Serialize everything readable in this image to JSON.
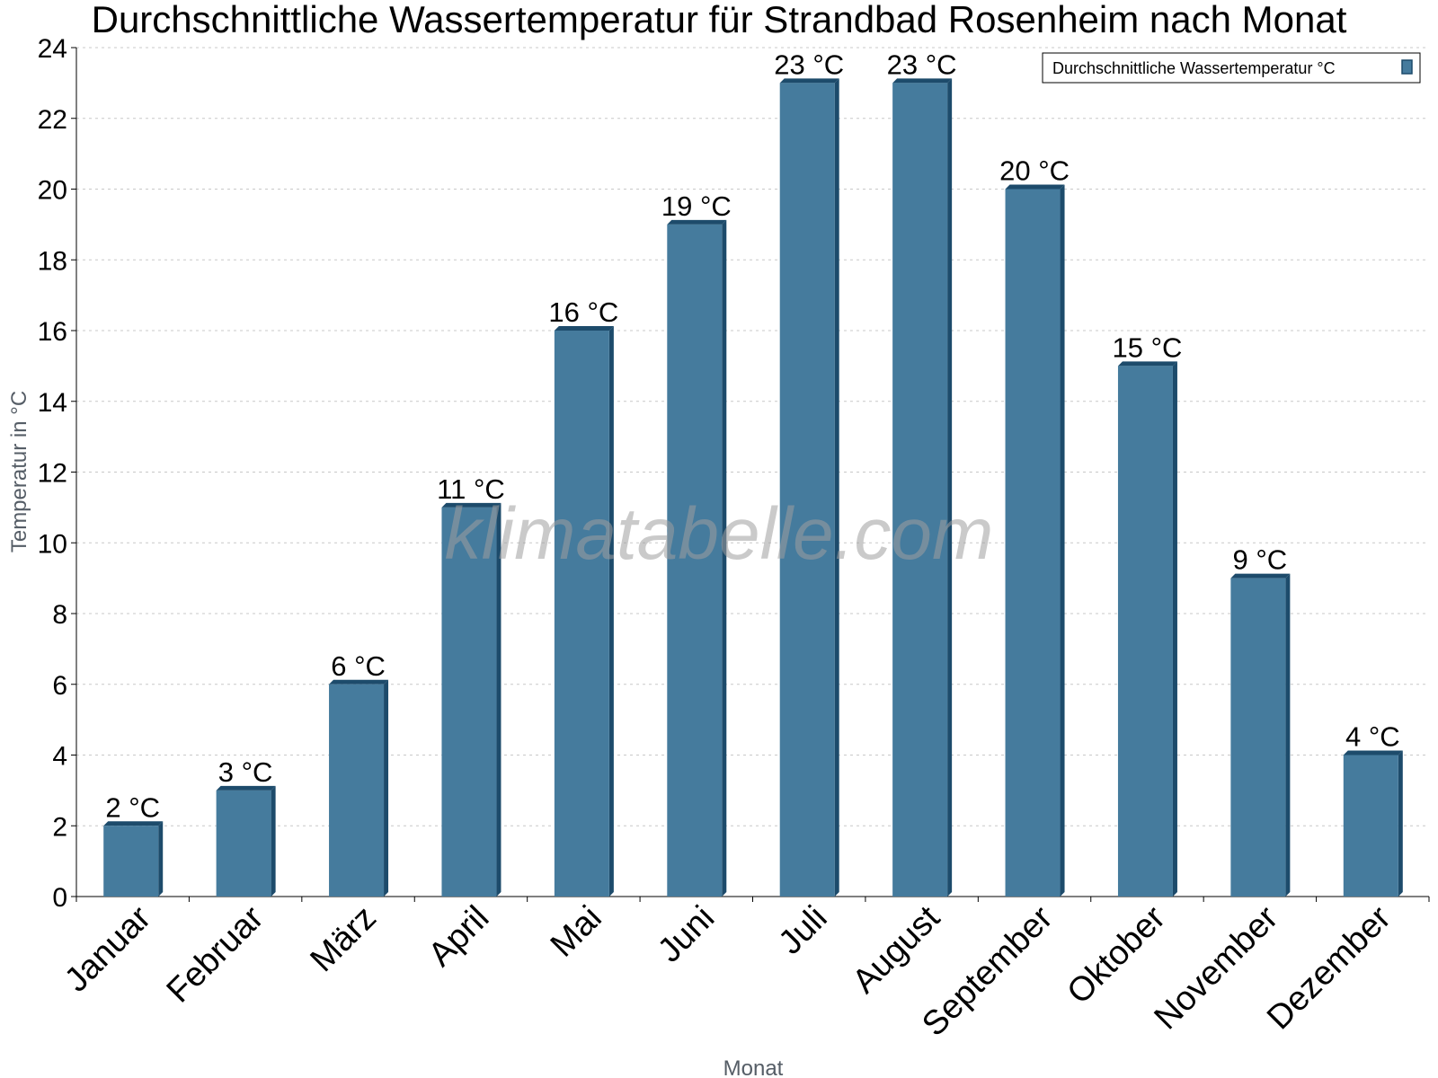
{
  "chart_data": {
    "type": "bar",
    "title": "Durchschnittliche Wassertemperatur für Strandbad Rosenheim nach Monat",
    "xlabel": "Monat",
    "ylabel": "Temperatur in °C",
    "categories": [
      "Januar",
      "Februar",
      "März",
      "April",
      "Mai",
      "Juni",
      "Juli",
      "August",
      "September",
      "Oktober",
      "November",
      "Dezember"
    ],
    "series": [
      {
        "name": "Durchschnittliche Wassertemperatur °C",
        "values": [
          2,
          3,
          6,
          11,
          16,
          19,
          23,
          23,
          20,
          15,
          9,
          4
        ],
        "data_labels": [
          "2 °C",
          "3 °C",
          "6 °C",
          "11 °C",
          "16 °C",
          "19 °C",
          "23 °C",
          "23 °C",
          "20 °C",
          "15 °C",
          "9 °C",
          "4 °C"
        ],
        "color": "#457b9d",
        "shade_color": "#1d4b6b"
      }
    ],
    "ylim": [
      0,
      24
    ],
    "yticks": [
      0,
      2,
      4,
      6,
      8,
      10,
      12,
      14,
      16,
      18,
      20,
      22,
      24
    ],
    "grid": true,
    "legend_position": "top-right",
    "watermark": "klimatabelle.com"
  }
}
